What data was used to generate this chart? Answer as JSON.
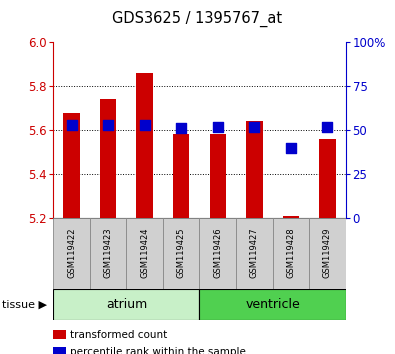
{
  "title": "GDS3625 / 1395767_at",
  "samples": [
    "GSM119422",
    "GSM119423",
    "GSM119424",
    "GSM119425",
    "GSM119426",
    "GSM119427",
    "GSM119428",
    "GSM119429"
  ],
  "transformed_counts": [
    5.68,
    5.74,
    5.86,
    5.58,
    5.58,
    5.64,
    5.21,
    5.56
  ],
  "percentile_ranks": [
    53,
    53,
    53,
    51,
    52,
    52,
    40,
    52
  ],
  "ylim_left": [
    5.2,
    6.0
  ],
  "ylim_right": [
    0,
    100
  ],
  "yticks_left": [
    5.2,
    5.4,
    5.6,
    5.8,
    6.0
  ],
  "yticks_right": [
    0,
    25,
    50,
    75,
    100
  ],
  "yticklabels_right": [
    "0",
    "25",
    "50",
    "75",
    "100%"
  ],
  "base_value": 5.2,
  "tissue_groups": [
    {
      "label": "atrium",
      "start": 0,
      "end": 4,
      "color": "#c8f0c8"
    },
    {
      "label": "ventricle",
      "start": 4,
      "end": 8,
      "color": "#50d050"
    }
  ],
  "bar_color": "#cc0000",
  "dot_color": "#0000cc",
  "bar_width": 0.45,
  "dot_size": 45,
  "tick_color_left": "#cc0000",
  "tick_color_right": "#0000cc",
  "legend_items": [
    {
      "color": "#cc0000",
      "label": "transformed count"
    },
    {
      "color": "#0000cc",
      "label": "percentile rank within the sample"
    }
  ],
  "fig_bg": "#ffffff"
}
